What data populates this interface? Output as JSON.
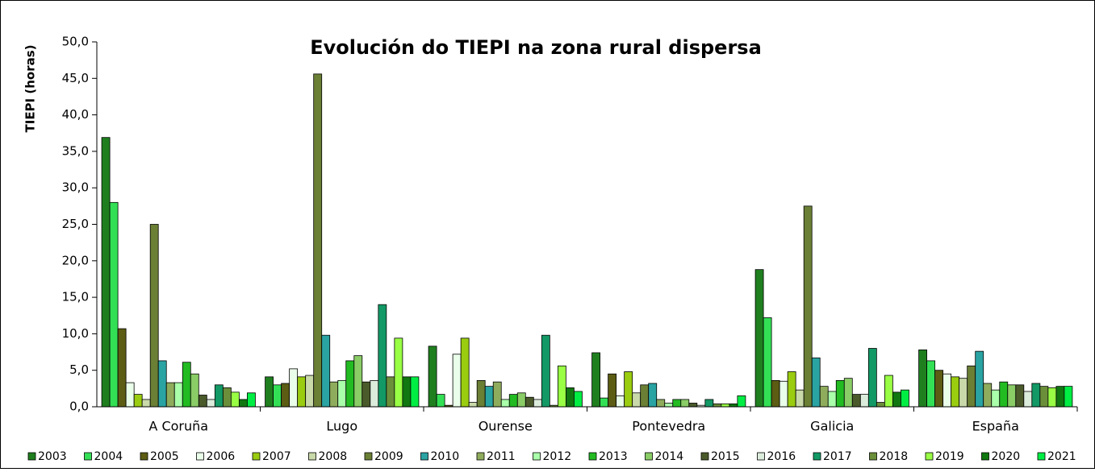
{
  "chart_data": {
    "type": "bar",
    "title": "Evolución do TIEPI na zona rural dispersa",
    "y_label": "TIEPI (horas)",
    "categories": [
      "A Coruña",
      "Lugo",
      "Ourense",
      "Pontevedra",
      "Galicia",
      "España"
    ],
    "ylim": [
      0,
      50
    ],
    "yticks": [
      {
        "value": 0,
        "label": "0,0"
      },
      {
        "value": 5,
        "label": "5,0"
      },
      {
        "value": 10,
        "label": "10,0"
      },
      {
        "value": 15,
        "label": "15,0"
      },
      {
        "value": 20,
        "label": "20,0"
      },
      {
        "value": 25,
        "label": "25,0"
      },
      {
        "value": 30,
        "label": "30,0"
      },
      {
        "value": 35,
        "label": "35,0"
      },
      {
        "value": 40,
        "label": "40,0"
      },
      {
        "value": 45,
        "label": "45,0"
      },
      {
        "value": 50,
        "label": "50,0"
      }
    ],
    "series": [
      {
        "name": "2003",
        "color": "#1f7f1f",
        "values": [
          36.9,
          4.1,
          8.3,
          7.4,
          18.8,
          7.8
        ]
      },
      {
        "name": "2004",
        "color": "#33e055",
        "values": [
          28.0,
          3.0,
          1.7,
          1.2,
          12.2,
          6.3
        ]
      },
      {
        "name": "2005",
        "color": "#5c5c14",
        "values": [
          10.7,
          3.2,
          0.2,
          4.5,
          3.6,
          5.0
        ]
      },
      {
        "name": "2006",
        "color": "#eaffea",
        "values": [
          3.3,
          5.2,
          7.2,
          1.5,
          3.5,
          4.5
        ]
      },
      {
        "name": "2007",
        "color": "#9acc10",
        "values": [
          1.7,
          4.1,
          9.4,
          4.8,
          4.8,
          4.1
        ]
      },
      {
        "name": "2008",
        "color": "#c9d9aa",
        "values": [
          1.0,
          4.3,
          0.6,
          1.9,
          2.3,
          3.9
        ]
      },
      {
        "name": "2009",
        "color": "#6b7f35",
        "values": [
          25.0,
          45.6,
          3.6,
          3.0,
          27.5,
          5.6
        ]
      },
      {
        "name": "2010",
        "color": "#2aa3a3",
        "values": [
          6.3,
          9.8,
          2.8,
          3.2,
          6.7,
          7.6
        ]
      },
      {
        "name": "2011",
        "color": "#8fac5c",
        "values": [
          3.3,
          3.4,
          3.4,
          1.0,
          2.8,
          3.2
        ]
      },
      {
        "name": "2012",
        "color": "#aaffaa",
        "values": [
          3.3,
          3.6,
          1.0,
          0.5,
          2.1,
          2.3
        ]
      },
      {
        "name": "2013",
        "color": "#22bb22",
        "values": [
          6.1,
          6.3,
          1.7,
          1.0,
          3.6,
          3.4
        ]
      },
      {
        "name": "2014",
        "color": "#8acc66",
        "values": [
          4.5,
          7.0,
          1.9,
          1.0,
          3.9,
          3.0
        ]
      },
      {
        "name": "2015",
        "color": "#4b5a2b",
        "values": [
          1.6,
          3.4,
          1.3,
          0.5,
          1.7,
          3.0
        ]
      },
      {
        "name": "2016",
        "color": "#dcecdc",
        "values": [
          1.0,
          3.6,
          1.0,
          0.2,
          1.7,
          2.1
        ]
      },
      {
        "name": "2017",
        "color": "#129966",
        "values": [
          3.0,
          14.0,
          9.8,
          1.0,
          8.0,
          3.2
        ]
      },
      {
        "name": "2018",
        "color": "#6b8e3a",
        "values": [
          2.6,
          4.1,
          0.2,
          0.4,
          0.6,
          2.8
        ]
      },
      {
        "name": "2019",
        "color": "#99ff44",
        "values": [
          2.0,
          9.4,
          5.6,
          0.4,
          4.3,
          2.6
        ]
      },
      {
        "name": "2020",
        "color": "#117711",
        "values": [
          1.0,
          4.1,
          2.6,
          0.4,
          2.0,
          2.8
        ]
      },
      {
        "name": "2021",
        "color": "#00ee44",
        "values": [
          1.9,
          4.1,
          2.1,
          1.5,
          2.3,
          2.8
        ]
      }
    ]
  }
}
